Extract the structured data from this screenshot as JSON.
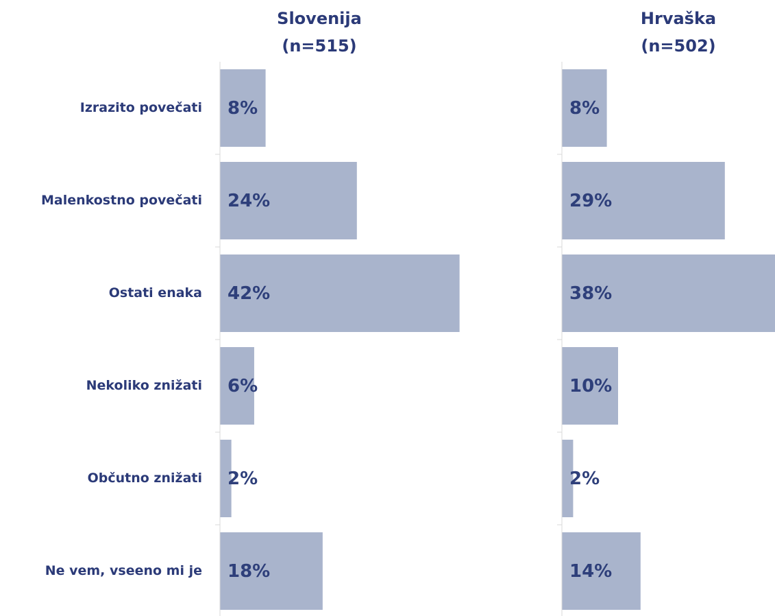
{
  "chart_data": [
    {
      "type": "bar",
      "orientation": "horizontal",
      "title": "Slovenija",
      "subtitle": "(n=515)",
      "categories": [
        "Izrazito povečati",
        "Malenkostno povečati",
        "Ostati enaka",
        "Nekoliko znižati",
        "Občutno znižati",
        "Ne vem, vseeno mi je"
      ],
      "values": [
        8,
        24,
        42,
        6,
        2,
        18
      ],
      "value_labels": [
        "8%",
        "24%",
        "42%",
        "6%",
        "2%",
        "18%"
      ],
      "color": "#a9b4cc",
      "xlim": [
        0,
        40
      ]
    },
    {
      "type": "bar",
      "orientation": "horizontal",
      "title": "Hrvaška",
      "subtitle": "(n=502)",
      "values": [
        8,
        29,
        38,
        10,
        2,
        14
      ],
      "value_labels": [
        "8%",
        "29%",
        "38%",
        "10%",
        "2%",
        "14%"
      ],
      "color": "#a9b4cc",
      "xlim": [
        0,
        40
      ]
    }
  ]
}
